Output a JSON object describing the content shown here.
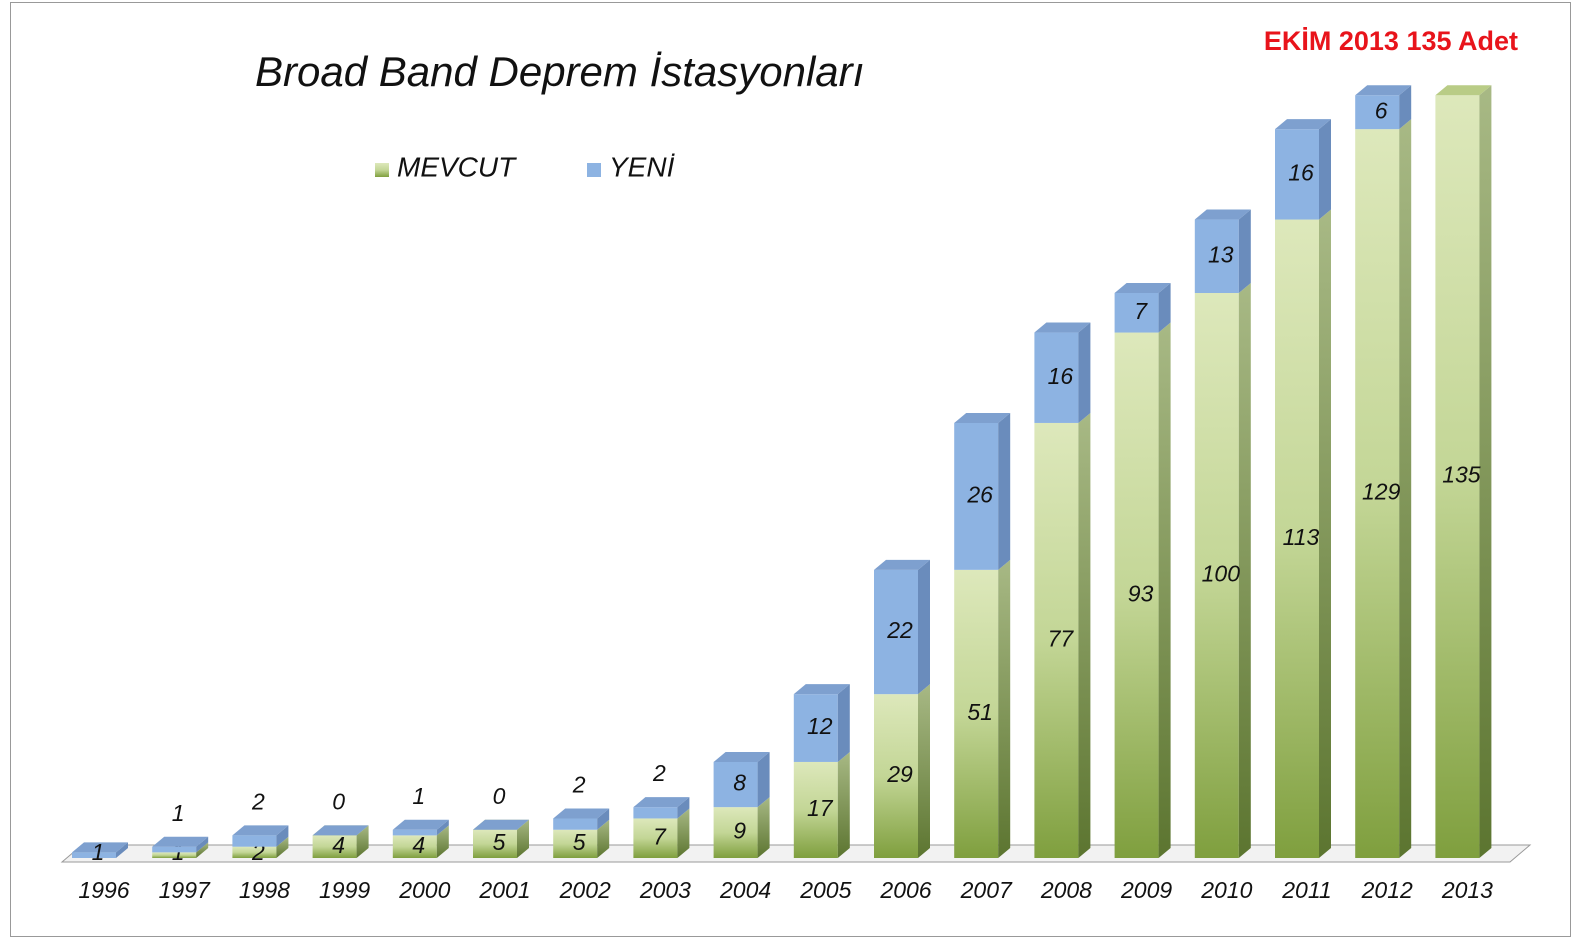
{
  "chart_data": {
    "type": "bar3d-stacked",
    "title": "Broad Band Deprem İstasyonları",
    "annotation": "EKİM  2013  135  Adet",
    "categories": [
      "1996",
      "1997",
      "1998",
      "1999",
      "2000",
      "2001",
      "2002",
      "2003",
      "2004",
      "2005",
      "2006",
      "2007",
      "2008",
      "2009",
      "2010",
      "2011",
      "2012",
      "2013"
    ],
    "series": [
      {
        "name": "MEVCUT",
        "color": "#8fae52",
        "values": [
          null,
          1,
          2,
          4,
          4,
          5,
          5,
          7,
          9,
          17,
          29,
          51,
          77,
          93,
          100,
          113,
          129,
          135
        ]
      },
      {
        "name": "YENİ",
        "color": "#8db3e2",
        "values": [
          1,
          1,
          2,
          0,
          1,
          0,
          2,
          2,
          8,
          12,
          22,
          26,
          16,
          7,
          13,
          16,
          6,
          null
        ]
      }
    ],
    "ylim": [
      0,
      140
    ],
    "legend": "top-left"
  }
}
